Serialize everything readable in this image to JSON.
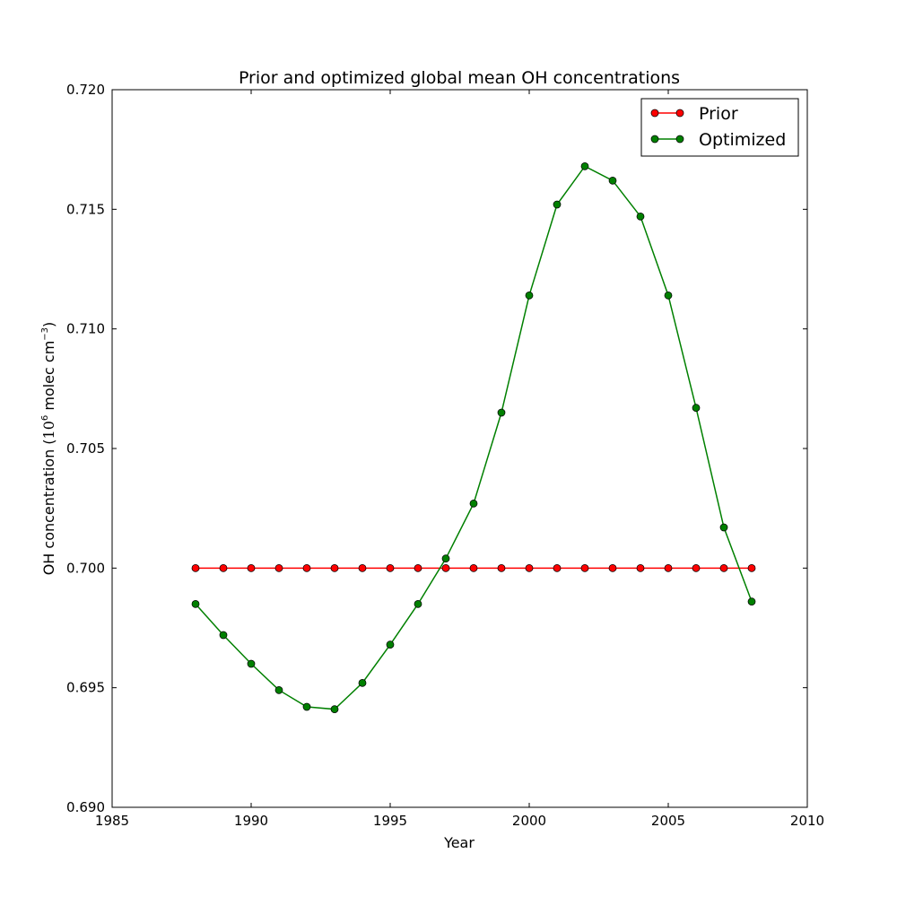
{
  "chart_data": {
    "type": "line",
    "title": "Prior and optimized global mean OH concentrations",
    "xlabel": "Year",
    "ylabel_main": "OH concentration (",
    "ylabel_base": "10",
    "ylabel_exp": "6",
    "ylabel_mid": " molec cm",
    "ylabel_exp2": "−3",
    "ylabel_end": ")",
    "xlim": [
      1985,
      2010
    ],
    "ylim": [
      0.69,
      0.72
    ],
    "xticks": [
      "1985",
      "1990",
      "1995",
      "2000",
      "2005",
      "2010"
    ],
    "yticks": [
      "0.690",
      "0.695",
      "0.700",
      "0.705",
      "0.710",
      "0.715",
      "0.720"
    ],
    "x": [
      1988,
      1989,
      1990,
      1991,
      1992,
      1993,
      1994,
      1995,
      1996,
      1997,
      1998,
      1999,
      2000,
      2001,
      2002,
      2003,
      2004,
      2005,
      2006,
      2007,
      2008
    ],
    "legend_position": "upper right",
    "grid": false,
    "series": [
      {
        "name": "Prior",
        "color": "#ff0000",
        "values": [
          0.7,
          0.7,
          0.7,
          0.7,
          0.7,
          0.7,
          0.7,
          0.7,
          0.7,
          0.7,
          0.7,
          0.7,
          0.7,
          0.7,
          0.7,
          0.7,
          0.7,
          0.7,
          0.7,
          0.7,
          0.7
        ]
      },
      {
        "name": "Optimized",
        "color": "#008000",
        "values": [
          0.6985,
          0.6972,
          0.696,
          0.6949,
          0.6942,
          0.6941,
          0.6952,
          0.6968,
          0.6985,
          0.7004,
          0.7027,
          0.7065,
          0.7114,
          0.7152,
          0.7168,
          0.7162,
          0.7147,
          0.7114,
          0.7067,
          0.7017,
          0.6986
        ]
      }
    ]
  }
}
